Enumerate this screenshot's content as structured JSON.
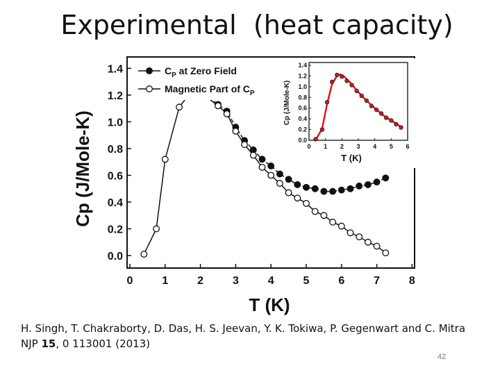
{
  "slide": {
    "title": "Experimental  (heat capacity)",
    "citation_line1": "H. Singh, T. Chakraborty, D. Das, H. S. Jeevan, Y. K. Tokiwa, P. Gegenwart and C. Mitra",
    "citation_line2_prefix": "NJP ",
    "citation_line2_bold": "15",
    "citation_line2_suffix": ", 0 113001 (2013)",
    "slide_number": "42"
  },
  "chart_data": [
    {
      "type": "line",
      "xlabel": "T (K)",
      "ylabel": "Cp (J/Mole-K)",
      "xlim": [
        0,
        8
      ],
      "ylim": [
        0.0,
        1.5
      ],
      "xticks": [
        "0",
        "1",
        "2",
        "3",
        "4",
        "5",
        "6",
        "7",
        "8"
      ],
      "yticks": [
        "0.0",
        "0.2",
        "0.4",
        "0.6",
        "0.8",
        "1.0",
        "1.2",
        "1.4"
      ],
      "legend_position": "top-left",
      "series": [
        {
          "name": "C",
          "name_sub": "P",
          "name_suffix": " at Zero Field",
          "marker": "filled-circle",
          "color": "#111111",
          "x": [
            1.75,
            2.1,
            2.5,
            2.75,
            3.0,
            3.25,
            3.5,
            3.75,
            4.0,
            4.25,
            4.5,
            4.75,
            5.0,
            5.25,
            5.5,
            5.75,
            6.0,
            6.25,
            6.5,
            6.75,
            7.0,
            7.25
          ],
          "y": [
            1.22,
            1.21,
            1.13,
            1.08,
            0.96,
            0.86,
            0.79,
            0.72,
            0.67,
            0.61,
            0.57,
            0.53,
            0.51,
            0.5,
            0.48,
            0.48,
            0.49,
            0.5,
            0.52,
            0.53,
            0.55,
            0.58
          ]
        },
        {
          "name": "Magnetic Part of C",
          "name_sub": "P",
          "name_suffix": "",
          "marker": "open-circle",
          "color": "#111111",
          "x": [
            0.4,
            0.75,
            1.0,
            1.4,
            1.75,
            2.1,
            2.5,
            2.75,
            3.0,
            3.25,
            3.5,
            3.75,
            4.0,
            4.25,
            4.5,
            4.75,
            5.0,
            5.25,
            5.5,
            5.75,
            6.0,
            6.25,
            6.5,
            6.75,
            7.0,
            7.25
          ],
          "y": [
            0.01,
            0.2,
            0.72,
            1.11,
            1.23,
            1.2,
            1.12,
            1.06,
            0.93,
            0.83,
            0.75,
            0.66,
            0.6,
            0.54,
            0.47,
            0.43,
            0.39,
            0.33,
            0.3,
            0.25,
            0.22,
            0.17,
            0.14,
            0.1,
            0.07,
            0.02
          ]
        }
      ]
    },
    {
      "type": "line",
      "role": "inset",
      "xlabel": "T (K)",
      "ylabel": "Cp (J/Mole-K)",
      "xlim": [
        0,
        6
      ],
      "ylim": [
        0.0,
        1.4
      ],
      "xticks": [
        "0",
        "1",
        "2",
        "3",
        "4",
        "5",
        "6"
      ],
      "yticks": [
        "0.0",
        "0.2",
        "0.4",
        "0.6",
        "0.8",
        "1.0",
        "1.2",
        "1.4"
      ],
      "series": [
        {
          "marker": "filled-circle-red",
          "color": "#e01010",
          "x": [
            0.4,
            0.8,
            1.1,
            1.4,
            1.7,
            2.0,
            2.3,
            2.6,
            2.9,
            3.2,
            3.5,
            3.8,
            4.1,
            4.4,
            4.7,
            5.0,
            5.3,
            5.6
          ],
          "y": [
            0.02,
            0.2,
            0.71,
            1.09,
            1.22,
            1.19,
            1.11,
            1.03,
            0.92,
            0.83,
            0.74,
            0.64,
            0.57,
            0.5,
            0.42,
            0.37,
            0.3,
            0.24
          ]
        },
        {
          "marker": "none",
          "color": "#e01010",
          "x": [
            0.4,
            0.8,
            1.1,
            1.4,
            1.7,
            1.9,
            2.1,
            2.5,
            3.0,
            3.5,
            4.0,
            4.5,
            5.0,
            5.6
          ],
          "y": [
            0.0,
            0.22,
            0.68,
            1.05,
            1.2,
            1.23,
            1.2,
            1.08,
            0.9,
            0.74,
            0.6,
            0.47,
            0.37,
            0.25
          ]
        }
      ]
    }
  ]
}
